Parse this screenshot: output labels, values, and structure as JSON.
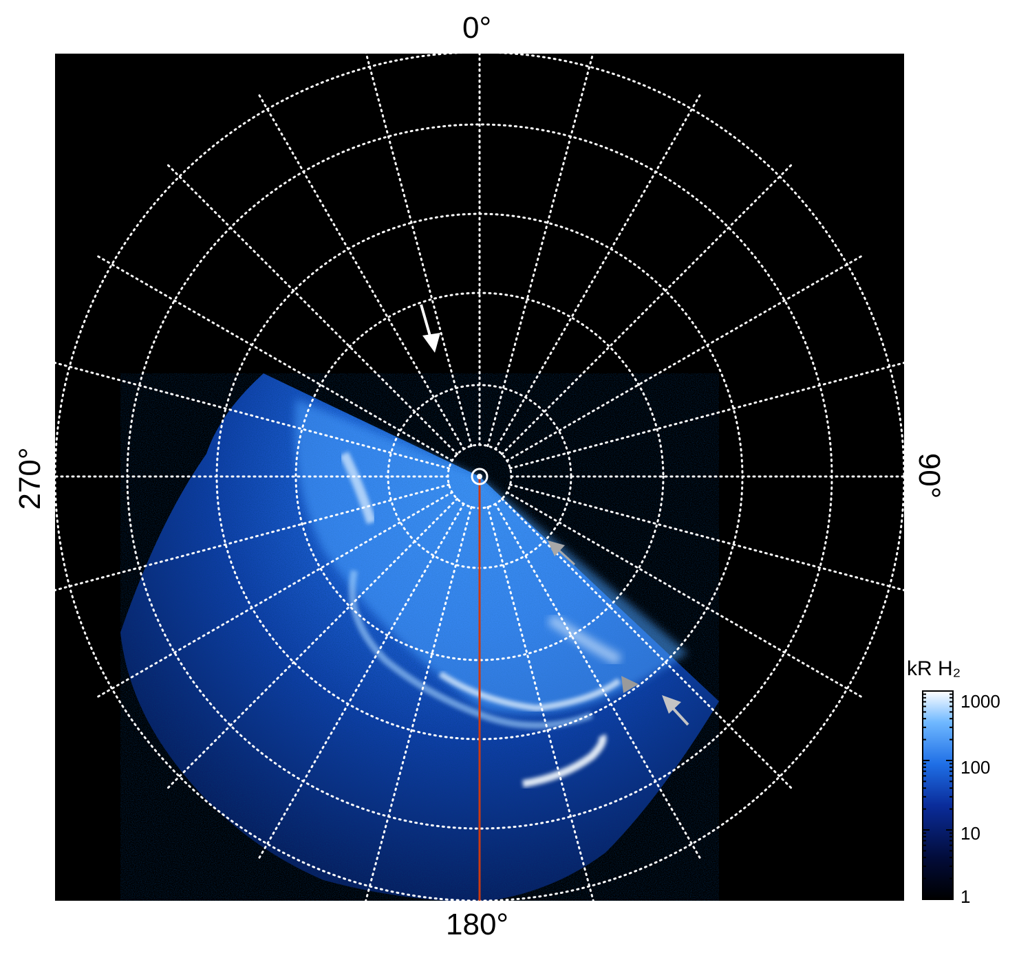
{
  "figure": {
    "longitude_labels": {
      "top": "0°",
      "bottom": "180°",
      "left": "270°",
      "right": "90°"
    },
    "background_color": "#000000",
    "grid_color": "#ffffff",
    "meridian_color": "#cc3a10"
  },
  "colorbar": {
    "title": "kR H₂",
    "ticks": [
      "1000",
      "100",
      "10",
      "1"
    ],
    "colors": [
      "#000000",
      "#020c3a",
      "#0a2c9a",
      "#1f6fe6",
      "#6fb8ff",
      "#ffffff"
    ]
  },
  "arrows": [
    {
      "name": "white-arrow",
      "color": "#ffffff"
    },
    {
      "name": "gray-arrow-upper",
      "color": "#a8a8a8"
    },
    {
      "name": "gray-arrowhead-lower",
      "color": "#9a9a9a"
    },
    {
      "name": "gray-arrow-lower",
      "color": "#c0c0c0"
    }
  ]
}
